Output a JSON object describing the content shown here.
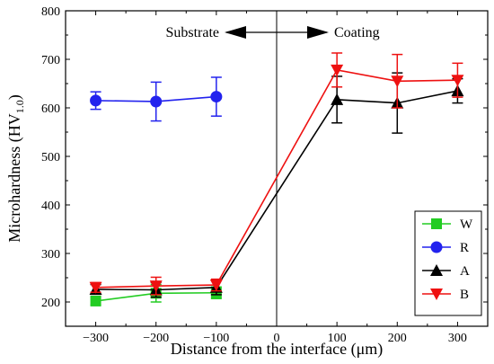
{
  "chart_data": {
    "type": "line",
    "xlabel": "Distance from the interface (μm)",
    "ylabel_main": "Microhardness (HV",
    "ylabel_sub": "1.0",
    "ylabel_close": ")",
    "xlim": [
      -350,
      350
    ],
    "ylim": [
      150,
      800
    ],
    "xticks": [
      -300,
      -200,
      -100,
      0,
      100,
      200,
      300
    ],
    "xtick_labels": [
      "−300",
      "−200",
      "−100",
      "0",
      "100",
      "200",
      "300"
    ],
    "yticks": [
      200,
      300,
      400,
      500,
      600,
      700,
      800
    ],
    "ytick_labels": [
      "200",
      "300",
      "400",
      "500",
      "600",
      "700",
      "800"
    ],
    "interface_x": 0,
    "annotations": {
      "substrate": "Substrate",
      "coating": "Coating"
    },
    "legend_position": "bottom-right",
    "series": [
      {
        "name": "W",
        "color": "#22cc22",
        "marker": "square",
        "x": [
          -300,
          -200,
          -100
        ],
        "y": [
          202,
          218,
          219
        ],
        "err": [
          8,
          18,
          12
        ]
      },
      {
        "name": "R",
        "color": "#2222ee",
        "marker": "circle",
        "x": [
          -300,
          -200,
          -100
        ],
        "y": [
          615,
          613,
          623
        ],
        "err": [
          18,
          40,
          40
        ]
      },
      {
        "name": "A",
        "color": "#000000",
        "marker": "triangle-up",
        "x": [
          -300,
          -200,
          -100,
          100,
          200,
          300
        ],
        "y": [
          226,
          225,
          230,
          617,
          610,
          635
        ],
        "err": [
          10,
          15,
          15,
          48,
          62,
          25
        ]
      },
      {
        "name": "B",
        "color": "#ee1111",
        "marker": "triangle-down",
        "x": [
          -300,
          -200,
          -100,
          100,
          200,
          300
        ],
        "y": [
          230,
          233,
          235,
          678,
          655,
          657
        ],
        "err": [
          10,
          18,
          12,
          35,
          55,
          35
        ]
      }
    ]
  }
}
